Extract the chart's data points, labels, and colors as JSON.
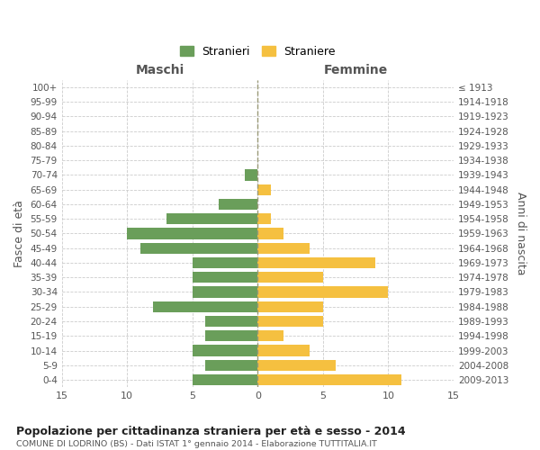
{
  "age_groups": [
    "0-4",
    "5-9",
    "10-14",
    "15-19",
    "20-24",
    "25-29",
    "30-34",
    "35-39",
    "40-44",
    "45-49",
    "50-54",
    "55-59",
    "60-64",
    "65-69",
    "70-74",
    "75-79",
    "80-84",
    "85-89",
    "90-94",
    "95-99",
    "100+"
  ],
  "birth_years": [
    "2009-2013",
    "2004-2008",
    "1999-2003",
    "1994-1998",
    "1989-1993",
    "1984-1988",
    "1979-1983",
    "1974-1978",
    "1969-1973",
    "1964-1968",
    "1959-1963",
    "1954-1958",
    "1949-1953",
    "1944-1948",
    "1939-1943",
    "1934-1938",
    "1929-1933",
    "1924-1928",
    "1919-1923",
    "1914-1918",
    "≤ 1913"
  ],
  "maschi": [
    5,
    4,
    5,
    4,
    4,
    8,
    5,
    5,
    5,
    9,
    10,
    7,
    3,
    0,
    1,
    0,
    0,
    0,
    0,
    0,
    0
  ],
  "femmine": [
    11,
    6,
    4,
    2,
    5,
    5,
    10,
    5,
    9,
    4,
    2,
    1,
    0,
    1,
    0,
    0,
    0,
    0,
    0,
    0,
    0
  ],
  "maschi_color": "#6a9e5a",
  "femmine_color": "#f5c040",
  "title": "Popolazione per cittadinanza straniera per età e sesso - 2014",
  "subtitle": "COMUNE DI LODRINO (BS) - Dati ISTAT 1° gennaio 2014 - Elaborazione TUTTITALIA.IT",
  "legend_maschi": "Stranieri",
  "legend_femmine": "Straniere",
  "xlabel_left": "Maschi",
  "xlabel_right": "Femmine",
  "ylabel_left": "Fasce di età",
  "ylabel_right": "Anni di nascita",
  "xlim": 15,
  "background_color": "#ffffff",
  "grid_color": "#cccccc"
}
